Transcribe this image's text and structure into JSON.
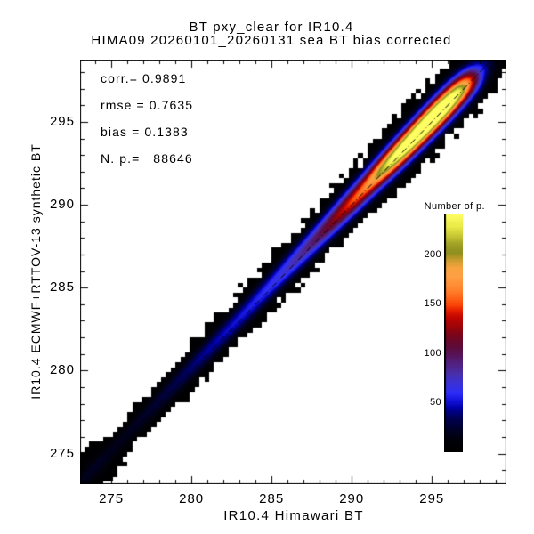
{
  "chart_data": {
    "type": "heatmap",
    "title": "BT pxy_clear for IR10.4",
    "subtitle": "HIMA09 20260101_20260131 sea BT bias corrected",
    "xlabel": "IR10.4 Himawari BT",
    "ylabel": "IR10.4 ECMWF+RTTOV-13 synthetic BT",
    "xlim": [
      273.05,
      299.65
    ],
    "ylim": [
      273.15,
      298.75
    ],
    "x_major_ticks": [
      275,
      280,
      285,
      290,
      295
    ],
    "y_major_ticks": [
      275,
      280,
      285,
      290,
      295
    ],
    "minor_tick_step": 1,
    "stats": {
      "lines": [
        "corr.= 0.9891",
        "rmse = 0.7635",
        "bias = 0.1383",
        "N. p.=   88646"
      ],
      "corr": 0.9891,
      "rmse": 0.7635,
      "bias": 0.1383,
      "n_points": 88646
    },
    "one_to_one_line": {
      "style": "dash-dot",
      "color": "#000000"
    },
    "colorbar": {
      "label": "Number of p.",
      "ticks": [
        50,
        100,
        150,
        200
      ],
      "range": [
        0,
        240
      ],
      "colormap_stops": [
        [
          0.0,
          "#000000"
        ],
        [
          0.05,
          "#010109"
        ],
        [
          0.1,
          "#01012a"
        ],
        [
          0.15,
          "#00005a"
        ],
        [
          0.19,
          "#0000a8"
        ],
        [
          0.22,
          "#1616e0"
        ],
        [
          0.25,
          "#2d2df8"
        ],
        [
          0.29,
          "#3b32d8"
        ],
        [
          0.33,
          "#4930ab"
        ],
        [
          0.37,
          "#512384"
        ],
        [
          0.41,
          "#571459"
        ],
        [
          0.45,
          "#600b38"
        ],
        [
          0.49,
          "#77061c"
        ],
        [
          0.53,
          "#9b0409"
        ],
        [
          0.57,
          "#c40600"
        ],
        [
          0.6,
          "#e62000"
        ],
        [
          0.625,
          "#fc4a0a"
        ],
        [
          0.66,
          "#ff6f20"
        ],
        [
          0.7,
          "#ff8c33"
        ],
        [
          0.74,
          "#ffa045"
        ],
        [
          0.78,
          "#f7a440"
        ],
        [
          0.81,
          "#c89c2e"
        ],
        [
          0.84,
          "#8f8f1f"
        ],
        [
          0.87,
          "#9c9c24"
        ],
        [
          0.91,
          "#c6c634"
        ],
        [
          0.95,
          "#e9e948"
        ],
        [
          1.0,
          "#ffff63"
        ]
      ]
    },
    "density_model": {
      "description": "2D histogram density concentrated along the 1:1 line; counts rise from ~10 near 273 K to a saturated yellow core (> 240 counts) around 292.5-296.5 K, then fall to ~5 near 299.5 K",
      "bin_size_k": 0.3,
      "offset_k": 0.15,
      "sigma_base_k": 0.44,
      "sigma_slope_per_k": 0.0125,
      "count_max": 240,
      "amplitude_profile": [
        [
          273.0,
          11
        ],
        [
          274,
          13
        ],
        [
          275,
          16
        ],
        [
          276,
          19
        ],
        [
          277,
          23
        ],
        [
          278,
          27
        ],
        [
          279,
          32
        ],
        [
          280,
          38
        ],
        [
          281,
          44
        ],
        [
          282,
          48
        ],
        [
          283,
          52
        ],
        [
          284,
          56
        ],
        [
          285,
          62
        ],
        [
          286,
          72
        ],
        [
          287,
          85
        ],
        [
          288,
          100
        ],
        [
          289,
          122
        ],
        [
          290,
          148
        ],
        [
          290.7,
          162
        ],
        [
          291.3,
          180
        ],
        [
          292,
          215
        ],
        [
          292.7,
          245
        ],
        [
          293.5,
          270
        ],
        [
          294.3,
          288
        ],
        [
          295,
          295
        ],
        [
          295.7,
          288
        ],
        [
          296.3,
          262
        ],
        [
          296.8,
          230
        ],
        [
          297.2,
          185
        ],
        [
          297.6,
          130
        ],
        [
          298.0,
          72
        ],
        [
          298.4,
          38
        ],
        [
          298.8,
          20
        ],
        [
          299.2,
          9
        ],
        [
          299.65,
          4
        ]
      ],
      "corner_blob": {
        "center_k": 273.8,
        "amplitude": 8,
        "extent_k": 1.3,
        "width_factor": 2.2
      }
    }
  }
}
